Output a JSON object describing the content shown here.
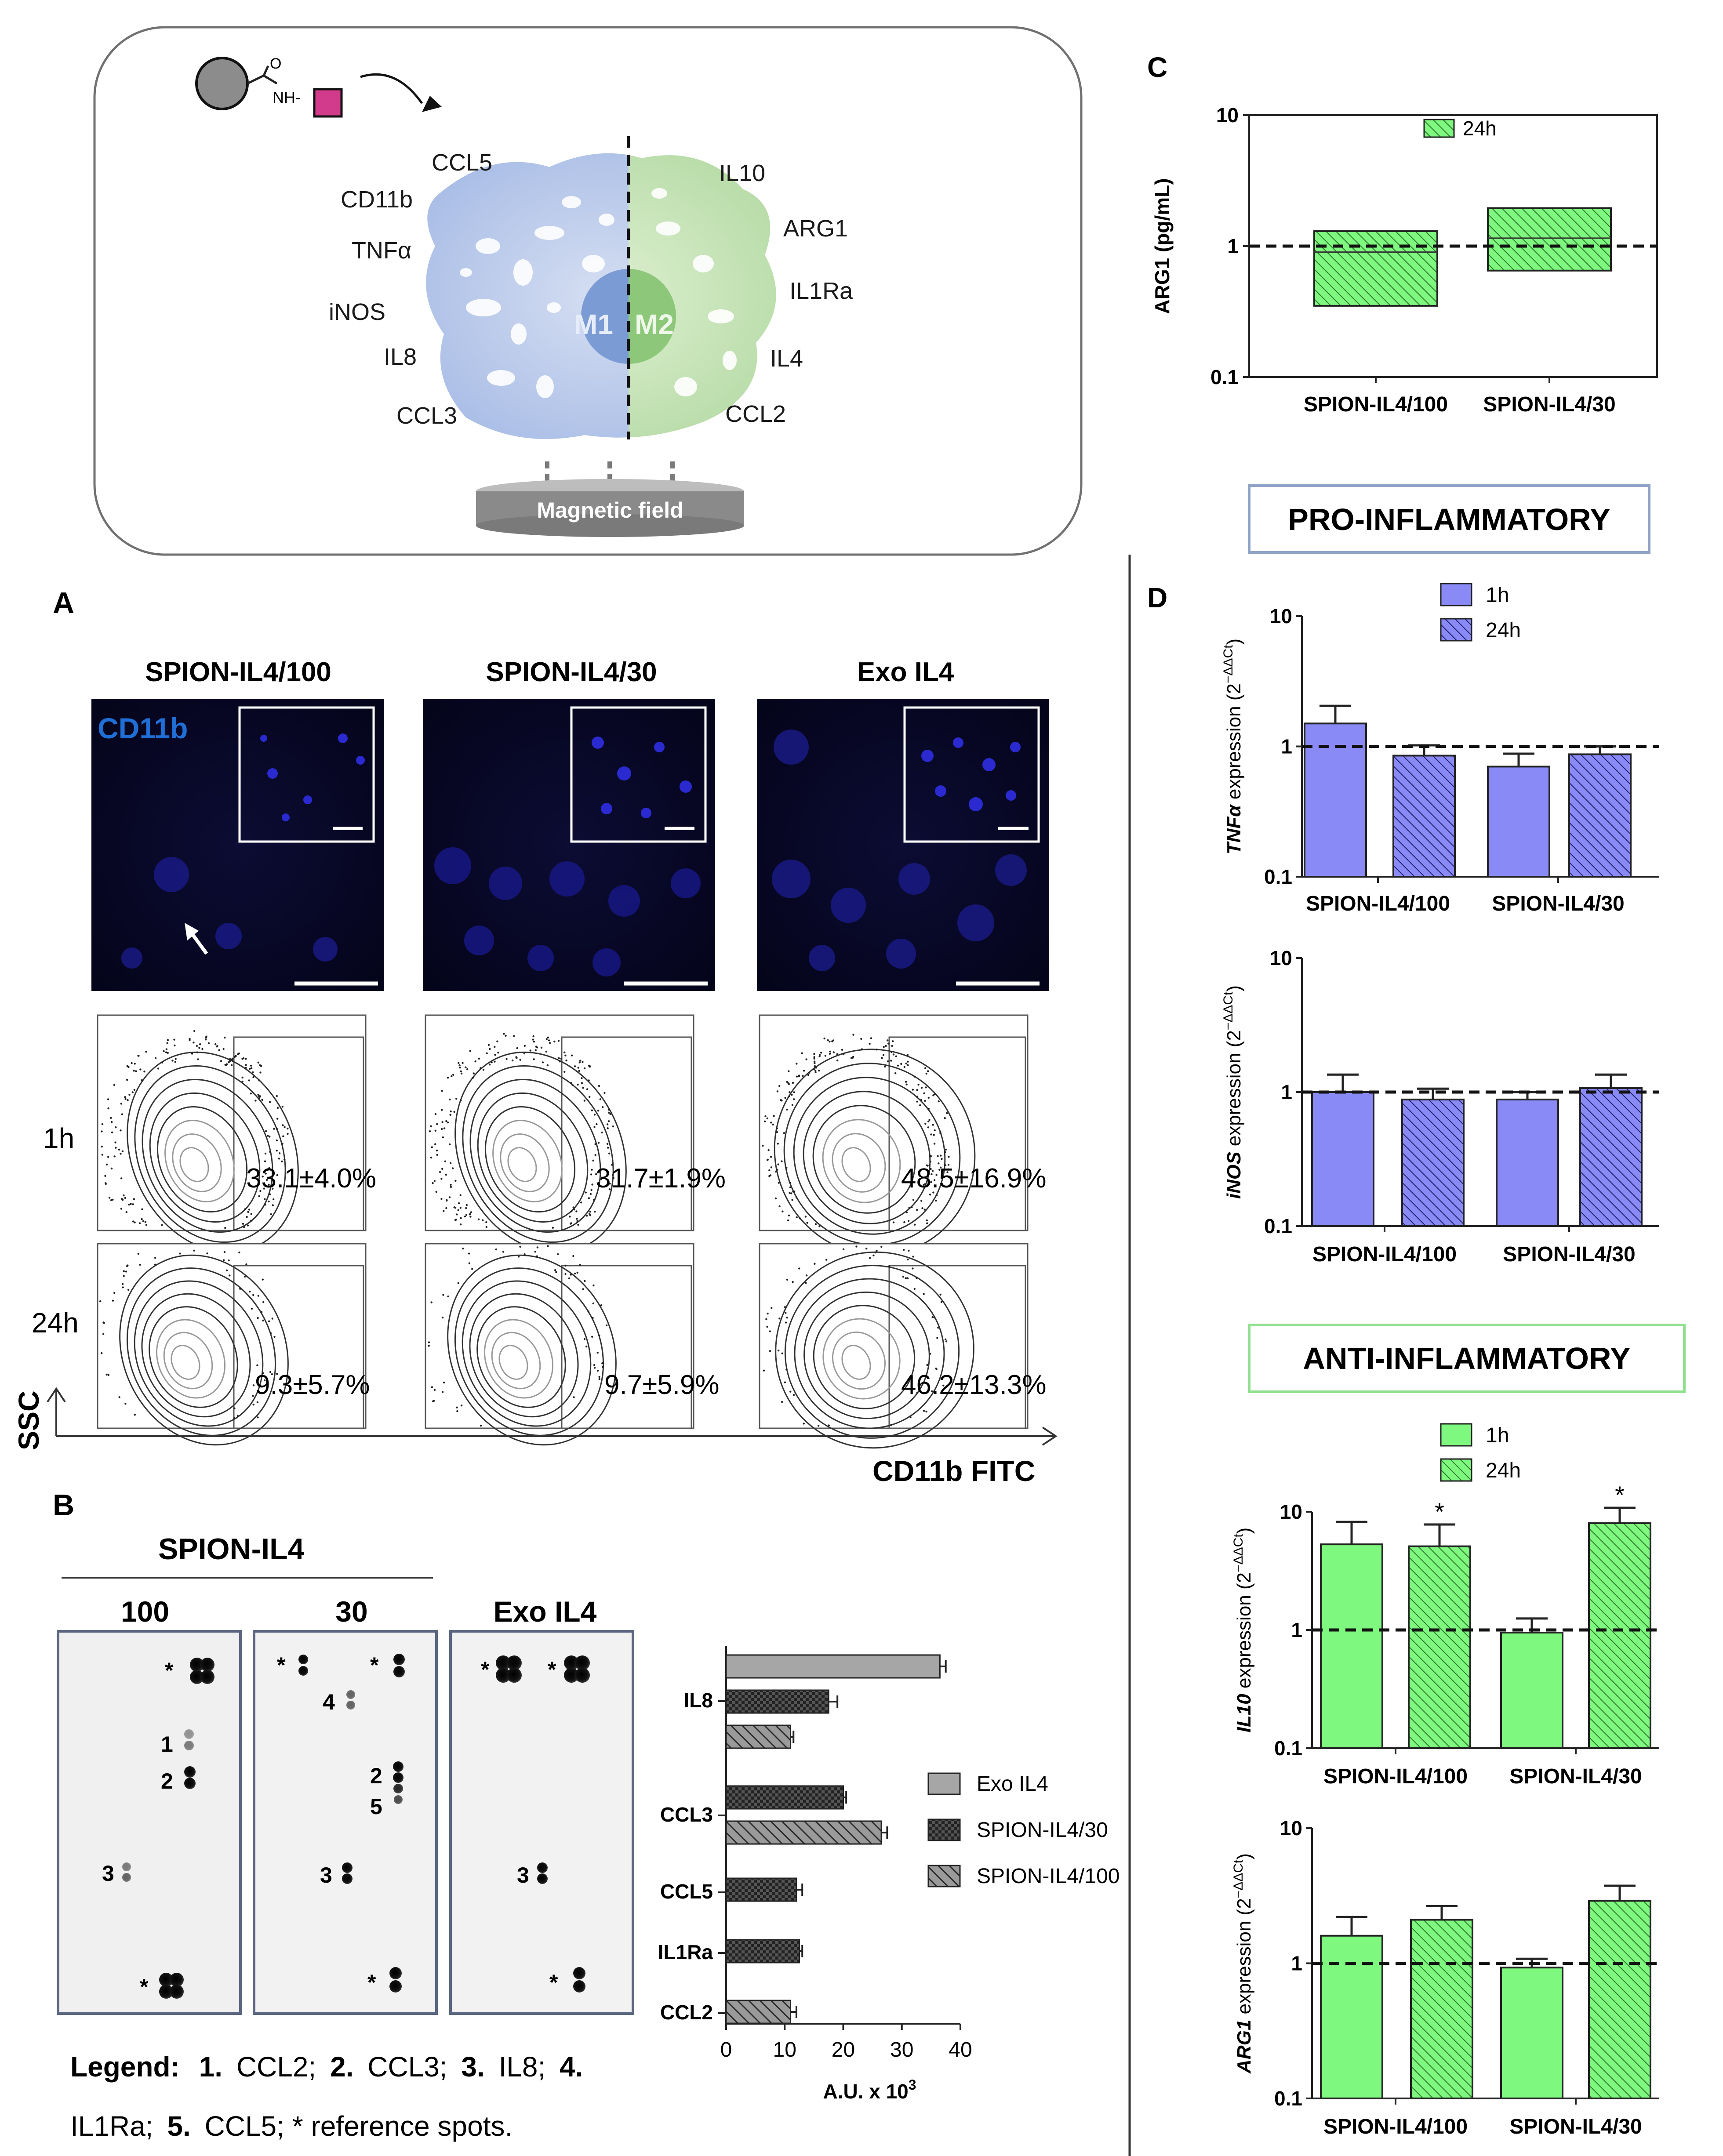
{
  "schematic": {
    "m1_markers": [
      "CCL5",
      "CD11b",
      "TNFα",
      "iNOS",
      "IL8",
      "CCL3"
    ],
    "m2_markers": [
      "IL10",
      "ARG1",
      "IL1Ra",
      "IL4",
      "CCL2"
    ],
    "m1_label": "M1",
    "m2_label": "M2",
    "amide_label": "NH-",
    "amide_o": "O",
    "magnetic_label": "Magnetic field"
  },
  "panel_a": {
    "letter": "A",
    "columns": [
      "SPION-IL4/100",
      "SPION-IL4/30",
      "Exo IL4"
    ],
    "stain_label": "CD11b",
    "rows": [
      "1h",
      "24h"
    ],
    "values_1h": [
      "33.1±4.0%",
      "31.7±1.9%",
      "48.5±16.9%"
    ],
    "values_24h": [
      "9.3±5.7%",
      "9.7±5.9%",
      "46.2±13.3%"
    ],
    "x_axis": "CD11b FITC",
    "y_axis": "SSC"
  },
  "panel_b": {
    "letter": "B",
    "group_title": "SPION-IL4",
    "array_titles": [
      "100",
      "30",
      "Exo IL4"
    ],
    "spot_marks": {
      "m100": [
        "*",
        "1",
        "2",
        "3",
        "*"
      ],
      "m30": [
        "*",
        "*",
        "4",
        "2",
        "5",
        "3",
        "*"
      ],
      "exo": [
        "*",
        "*",
        "3",
        "*"
      ]
    },
    "legend_line1": [
      "Legend:",
      "1.",
      "CCL2;",
      "2.",
      "CCL3;",
      "3.",
      "IL8;",
      "4."
    ],
    "legend_line2": [
      "IL1Ra;",
      "5.",
      "CCL5; * reference spots."
    ],
    "chart_data": {
      "type": "bar",
      "orientation": "horizontal",
      "categories": [
        "IL8",
        "CCL3",
        "CCL5",
        "IL1Ra",
        "CCL2"
      ],
      "series": [
        {
          "name": "Exo IL4",
          "values": [
            36.5,
            null,
            null,
            null,
            null
          ],
          "errors": [
            1.0,
            null,
            null,
            null,
            null
          ],
          "color": "#a6a6a6"
        },
        {
          "name": "SPION-IL4/30",
          "values": [
            17.5,
            20,
            12,
            12.5,
            null
          ],
          "errors": [
            1.5,
            0.5,
            1.0,
            0.5,
            null
          ],
          "color": "#3a3a3a"
        },
        {
          "name": "SPION-IL4/100",
          "values": [
            11,
            26.5,
            null,
            null,
            11
          ],
          "errors": [
            0.5,
            1.0,
            null,
            null,
            1.0
          ],
          "color": "#7f7f7f"
        }
      ],
      "xlabel": "A.U. x 10",
      "xlabel_sup": "3",
      "xlim": [
        0,
        40
      ],
      "ticks": [
        "0",
        "10",
        "20",
        "30",
        "40"
      ],
      "legend": [
        "Exo IL4",
        "SPION-IL4/30",
        "SPION-IL4/100"
      ]
    }
  },
  "panel_c": {
    "letter": "C",
    "chart_data": {
      "type": "bar",
      "scale": "log",
      "ylabel": "ARG1 (pg/mL)",
      "ylim": [
        0.1,
        10
      ],
      "ticks": [
        "0.1",
        "1",
        "10"
      ],
      "categories": [
        "SPION-IL4/100",
        "SPION-IL4/30"
      ],
      "legend": [
        "24h"
      ],
      "boxes": [
        {
          "low": 0.35,
          "high": 1.3,
          "mid": 0.9
        },
        {
          "low": 0.65,
          "high": 1.95,
          "mid": 1.15
        }
      ],
      "reference_line": 1
    }
  },
  "pro_title": "PRO-INFLAMMATORY",
  "anti_title": "ANTI-INFLAMMATORY",
  "panel_d": {
    "letter": "D",
    "legend": [
      "1h",
      "24h"
    ],
    "categories": [
      "SPION-IL4/100",
      "SPION-IL4/30"
    ],
    "chart_data": [
      {
        "type": "bar",
        "scale": "log",
        "gene": "TNF",
        "gene_sym": "α",
        "ylabel_rest": " expression (2",
        "ylabel_sup": "−ΔΔCt",
        "ylabel_end": ")",
        "ylim": [
          0.1,
          10
        ],
        "ticks": [
          "0.1",
          "1",
          "10"
        ],
        "color": "#8a8af7",
        "values": [
          1.5,
          0.85,
          0.7,
          0.87
        ],
        "errors": [
          0.55,
          0.17,
          0.18,
          0.13
        ],
        "stars": [
          "",
          "",
          "",
          ""
        ]
      },
      {
        "type": "bar",
        "scale": "log",
        "gene": "iNOS",
        "gene_sym": "",
        "ylabel_rest": " expression (2",
        "ylabel_sup": "−ΔΔCt",
        "ylabel_end": ")",
        "ylim": [
          0.1,
          10
        ],
        "ticks": [
          "0.1",
          "1",
          "10"
        ],
        "color": "#8a8af7",
        "values": [
          1.0,
          0.88,
          0.88,
          1.07
        ],
        "errors": [
          0.35,
          0.18,
          0.12,
          0.28
        ],
        "stars": [
          "",
          "",
          "",
          ""
        ]
      },
      {
        "type": "bar",
        "scale": "log",
        "gene": "IL10",
        "gene_sym": "",
        "ylabel_rest": " expression (2",
        "ylabel_sup": "−ΔΔCt",
        "ylabel_end": ")",
        "ylim": [
          0.1,
          10
        ],
        "ticks": [
          "0.1",
          "1",
          "10"
        ],
        "color": "#7ff87f",
        "values": [
          5.3,
          5.1,
          0.95,
          8.0
        ],
        "errors": [
          2.9,
          2.7,
          0.3,
          2.8
        ],
        "stars": [
          "",
          "*",
          "",
          "*"
        ]
      },
      {
        "type": "bar",
        "scale": "log",
        "gene": "ARG1",
        "gene_sym": "",
        "ylabel_rest": " expression (2",
        "ylabel_sup": "−ΔΔCt",
        "ylabel_end": ")",
        "ylim": [
          0.1,
          10
        ],
        "ticks": [
          "0.1",
          "1",
          "10"
        ],
        "color": "#7ff87f",
        "values": [
          1.6,
          2.1,
          0.93,
          2.9
        ],
        "errors": [
          0.6,
          0.55,
          0.15,
          0.85
        ],
        "stars": [
          "",
          "",
          "",
          ""
        ]
      }
    ]
  }
}
